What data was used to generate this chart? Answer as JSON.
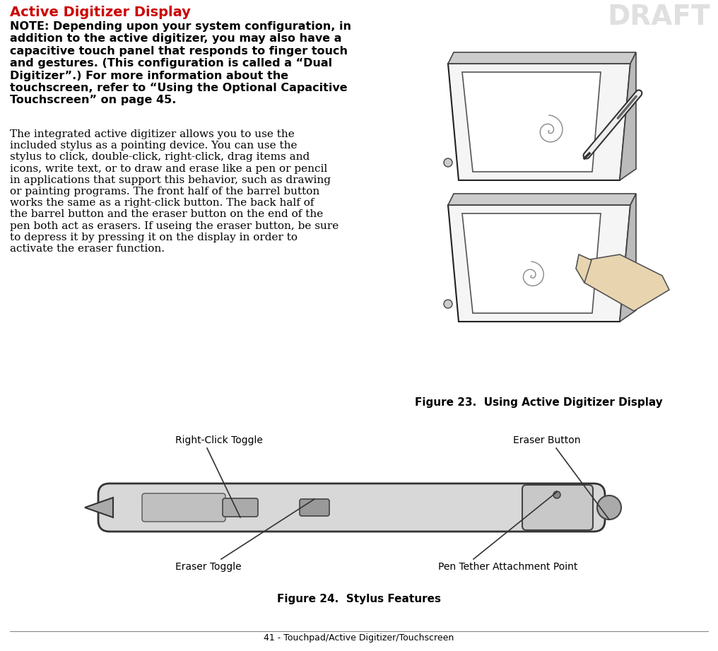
{
  "title": "Active Digitizer Display",
  "title_color": "#cc0000",
  "draft_watermark": "DRAFT",
  "draft_color": "#cccccc",
  "note_text": "NOTE: Depending upon your system configuration, in\naddition to the active digitizer, you may also have a\ncapacitive touch panel that responds to finger touch\nand gestures. (This configuration is called a “Dual\nDigitizer”.) For more information about the\ntouchscreen, refer to “Using the Optional Capacitive\nTouchscreen” on page 45.",
  "body_text": "The integrated active digitizer allows you to use the\nincluded stylus as a pointing device. You can use the\nstylus to click, double-click, right-click, drag items and\nicons, write text, or to draw and erase like a pen or pencil\nin applications that support this behavior, such as drawing\nor painting programs. The front half of the barrel button\nworks the same as a right-click button. The back half of\nthe barrel button and the eraser button on the end of the\npen both act as erasers. If useing the eraser button, be sure\nto depress it by pressing it on the display in order to\nactivate the eraser function.",
  "fig23_caption": "Figure 23.  Using Active Digitizer Display",
  "fig24_caption": "Figure 24.  Stylus Features",
  "label_right_click": "Right-Click Toggle",
  "label_eraser_toggle": "Eraser Toggle",
  "label_eraser_button": "Eraser Button",
  "label_pen_tether": "Pen Tether Attachment Point",
  "footer_text": "41 - Touchpad/Active Digitizer/Touchscreen",
  "bg_color": "#ffffff",
  "text_color": "#000000",
  "note_fontsize": 11.5,
  "body_fontsize": 11,
  "title_fontsize": 14,
  "caption_fontsize": 11,
  "label_fontsize": 10
}
